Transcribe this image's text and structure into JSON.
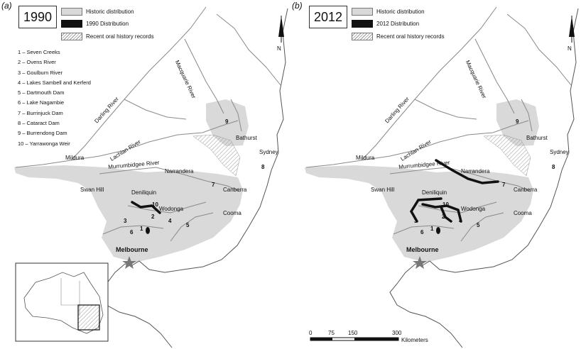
{
  "panels": [
    {
      "id": "a",
      "label": "(a)",
      "year": "1990",
      "legend": {
        "historic": "Historic distribution",
        "distribution": "1990 Distribution",
        "oral": "Recent oral history records"
      },
      "key": [
        "1 – Seven Creeks",
        "2 – Ovens River",
        "3 – Goulburn River",
        "4 – Lakes Sambell and Kerferd",
        "5 – Dartmouth Dam",
        "6 – Lake Nagambie",
        "7 – Burrinjuck Dam",
        "8 – Cataract Dam",
        "9 – Burrendong Dam",
        "10 – Yarrawonga Weir"
      ]
    },
    {
      "id": "b",
      "label": "(b)",
      "year": "2012",
      "legend": {
        "historic": "Historic distribution",
        "distribution": "2012 Distribution",
        "oral": "Recent oral history records"
      },
      "scale": {
        "ticks": [
          "0",
          "75",
          "150",
          "300"
        ],
        "unit": "Kilometers"
      }
    }
  ],
  "places": {
    "darling": "Darling River",
    "macquarie": "Macquarie River",
    "lachlan": "Lachlan River",
    "murrumbidgee": "Murrumbidgee River",
    "mildura": "Mildura",
    "narrandera": "Narrandera",
    "swan_hill": "Swan Hill",
    "deniliquin": "Deniliquin",
    "wodonga": "Wodonga",
    "canberra": "Canberra",
    "cooma": "Cooma",
    "bathurst": "Bathurst",
    "sydney": "Sydney",
    "melbourne": "Melbourne"
  },
  "site_numbers": [
    "1",
    "2",
    "3",
    "4",
    "5",
    "6",
    "7",
    "8",
    "9",
    "10"
  ],
  "north": "N",
  "colors": {
    "historic": "#d9d9d9",
    "distribution": "#111111",
    "river": "#8a8a8a",
    "coast": "#555555",
    "star": "#777777"
  }
}
